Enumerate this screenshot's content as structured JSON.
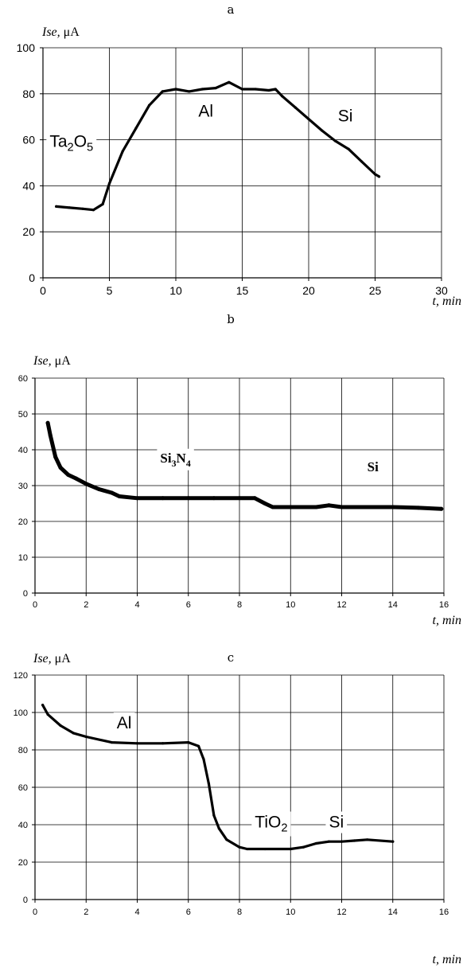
{
  "chart_data": [
    {
      "type": "line",
      "panel_label": "a",
      "ylabel": "Ise,",
      "ylabel_unit": "μA",
      "xlabel": "t, min",
      "xlim": [
        0,
        30
      ],
      "ylim": [
        0,
        100
      ],
      "xticks": [
        0,
        5,
        10,
        15,
        20,
        25,
        30
      ],
      "yticks": [
        0,
        20,
        40,
        60,
        80,
        100
      ],
      "grid": true,
      "annotations": [
        {
          "text": "Ta",
          "sub": "2",
          "text2": "O",
          "sub2": "5",
          "x": 0.5,
          "y": 57
        },
        {
          "text": "Al",
          "x": 11.7,
          "y": 70
        },
        {
          "text": "Si",
          "x": 22.2,
          "y": 68
        }
      ],
      "series": [
        {
          "x": [
            1,
            2,
            3,
            3.8,
            4.5,
            5,
            6,
            7,
            8,
            9,
            10,
            11,
            12,
            13,
            14,
            15,
            16,
            17,
            17.5,
            18,
            19,
            20,
            21,
            22,
            23,
            24,
            25,
            25.3
          ],
          "y": [
            31,
            30.5,
            30,
            29.5,
            32,
            41,
            55,
            65,
            75,
            81,
            82,
            81,
            82,
            82.5,
            85,
            82,
            82,
            81.5,
            82,
            79,
            74,
            69,
            64,
            59.5,
            56,
            50.5,
            45,
            44
          ]
        }
      ]
    },
    {
      "type": "line",
      "panel_label": "b",
      "ylabel": "Ise,",
      "ylabel_unit": "μA",
      "xlabel": "t, min",
      "xlim": [
        0,
        16
      ],
      "ylim": [
        0,
        60
      ],
      "xticks": [
        0,
        2,
        4,
        6,
        8,
        10,
        12,
        14,
        16
      ],
      "yticks": [
        0,
        10,
        20,
        30,
        40,
        50,
        60
      ],
      "grid": true,
      "annotations": [
        {
          "text": "Si",
          "sub": "3",
          "text2": "N",
          "sub2": "4",
          "x": 4.9,
          "y": 36.5
        },
        {
          "text": "Si",
          "x": 13.0,
          "y": 34
        }
      ],
      "series": [
        {
          "x": [
            0.5,
            0.6,
            0.8,
            1.0,
            1.3,
            1.6,
            2.0,
            2.5,
            3.0,
            3.3,
            4.0,
            5.0,
            6.0,
            7.0,
            8.0,
            8.6,
            9.0,
            9.3,
            10,
            11,
            11.5,
            12,
            13,
            14,
            15,
            15.9
          ],
          "y": [
            47.5,
            44,
            38,
            35,
            33,
            32,
            30.5,
            29,
            28,
            27,
            26.5,
            26.5,
            26.5,
            26.5,
            26.5,
            26.5,
            25,
            24,
            24,
            24,
            24.5,
            24,
            24,
            24,
            23.8,
            23.5
          ]
        }
      ]
    },
    {
      "type": "line",
      "panel_label": "c",
      "ylabel": "Ise,",
      "ylabel_unit": "μA",
      "xlabel": "t, min",
      "xlim": [
        0,
        16
      ],
      "ylim": [
        0,
        120
      ],
      "xticks": [
        0,
        2,
        4,
        6,
        8,
        10,
        12,
        14,
        16
      ],
      "yticks": [
        0,
        20,
        40,
        60,
        80,
        100,
        120
      ],
      "grid": true,
      "annotations": [
        {
          "text": "Al",
          "x": 3.2,
          "y": 91.5
        },
        {
          "text": "TiO",
          "sub": "2",
          "x": 8.6,
          "y": 38.5
        },
        {
          "text": "Si",
          "x": 11.5,
          "y": 38.5
        }
      ],
      "series": [
        {
          "x": [
            0.3,
            0.5,
            1.0,
            1.5,
            2.0,
            3.0,
            4.0,
            5.0,
            6.0,
            6.4,
            6.6,
            6.8,
            7.0,
            7.2,
            7.5,
            8.0,
            8.3,
            9.0,
            10.0,
            10.5,
            11.0,
            11.5,
            12.0,
            12.5,
            13.0,
            14.0
          ],
          "y": [
            104,
            99,
            93,
            89,
            87,
            84,
            83.5,
            83.5,
            84,
            82,
            75,
            62,
            45,
            38,
            32,
            28,
            27,
            27,
            27,
            28,
            30,
            31,
            31,
            31.5,
            32,
            31
          ]
        }
      ]
    }
  ]
}
